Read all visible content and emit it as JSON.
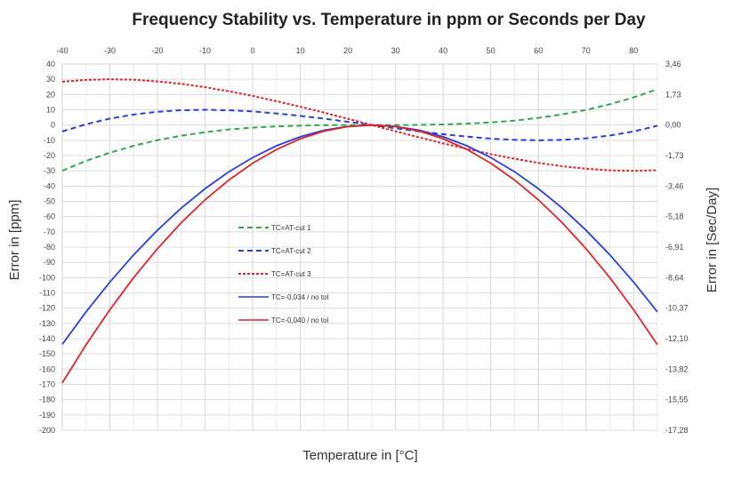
{
  "chart_data": {
    "type": "line",
    "title": "Frequency Stability vs. Temperature in ppm or Seconds per Day",
    "xlabel": "Temperature in [°C]",
    "ylabel": "Error in [ppm]",
    "y2label": "Error in [Sec/Day]",
    "xlim": [
      -40,
      85
    ],
    "ylim": [
      -200,
      40
    ],
    "grid": true,
    "legend_position": "center-left",
    "x_ticks": [
      "-40",
      "-30",
      "-20",
      "-10",
      "0",
      "10",
      "20",
      "30",
      "40",
      "50",
      "60",
      "70",
      "80"
    ],
    "y_ticks": [
      "40",
      "30",
      "20",
      "10",
      "0",
      "-10",
      "-20",
      "-30",
      "-40",
      "-50",
      "-60",
      "-70",
      "-80",
      "-90",
      "-100",
      "-110",
      "-120",
      "-130",
      "-140",
      "-150",
      "-160",
      "-170",
      "-180",
      "-190",
      "-200"
    ],
    "y2_ticks": [
      "3,46",
      "1,73",
      "0,00",
      "-1,73",
      "-3,46",
      "-5,18",
      "-6,91",
      "-8,64",
      "-10,37",
      "-12,10",
      "-13,82",
      "-15,55",
      "-17,28"
    ],
    "x": [
      -40,
      -35,
      -30,
      -25,
      -20,
      -15,
      -10,
      -5,
      0,
      5,
      10,
      15,
      20,
      25,
      30,
      35,
      40,
      45,
      50,
      55,
      60,
      65,
      70,
      75,
      80,
      85
    ],
    "series": [
      {
        "name": "TC=AT-cut 1",
        "color": "#2eaa4a",
        "style": "dashed",
        "values": [
          -29.9,
          -23.5,
          -18.1,
          -13.6,
          -9.9,
          -7.0,
          -4.7,
          -2.9,
          -1.7,
          -0.9,
          -0.4,
          -0.1,
          0,
          0,
          0,
          0.1,
          0.4,
          0.9,
          1.7,
          2.9,
          4.7,
          7.0,
          9.9,
          13.6,
          18.1,
          23.5
        ]
      },
      {
        "name": "TC=AT-cut 2",
        "color": "#2a3fe0",
        "style": "dashed",
        "values": [
          -4.2,
          0.5,
          4.2,
          6.9,
          8.7,
          9.7,
          10.0,
          9.7,
          8.9,
          7.6,
          6.0,
          4.2,
          2.1,
          0,
          -2.1,
          -4.2,
          -6.0,
          -7.6,
          -8.9,
          -9.7,
          -10.0,
          -9.7,
          -8.7,
          -6.9,
          -4.2,
          -0.5
        ]
      },
      {
        "name": "TC=AT-cut 3",
        "color": "#e02424",
        "style": "dotted",
        "values": [
          28.4,
          29.6,
          30.0,
          29.7,
          28.6,
          27.0,
          24.8,
          22.1,
          19.1,
          15.6,
          12.0,
          8.1,
          4.1,
          0,
          -4.1,
          -8.1,
          -12.0,
          -15.6,
          -19.1,
          -22.1,
          -24.8,
          -27.0,
          -28.6,
          -29.7,
          -30.0,
          -29.6
        ]
      },
      {
        "name": "TC=-0,034 / no tol",
        "color": "#2a3fe0",
        "style": "solid",
        "values": [
          -143.7,
          -122.4,
          -102.9,
          -85,
          -68.9,
          -54.4,
          -41.7,
          -30.6,
          -21.3,
          -13.6,
          -7.7,
          -3.4,
          -0.9,
          0,
          -0.9,
          -3.4,
          -7.7,
          -13.6,
          -21.3,
          -30.6,
          -41.7,
          -54.4,
          -68.9,
          -85,
          -102.9,
          -122.4
        ]
      },
      {
        "name": "TC=-0,040 / no tol",
        "color": "#e02424",
        "style": "solid",
        "values": [
          -169,
          -144,
          -121,
          -100,
          -81,
          -64,
          -49,
          -36,
          -25,
          -16,
          -9,
          -4,
          -1,
          0,
          -1,
          -4,
          -9,
          -16,
          -25,
          -36,
          -49,
          -64,
          -81,
          -100,
          -121,
          -144
        ]
      }
    ]
  }
}
